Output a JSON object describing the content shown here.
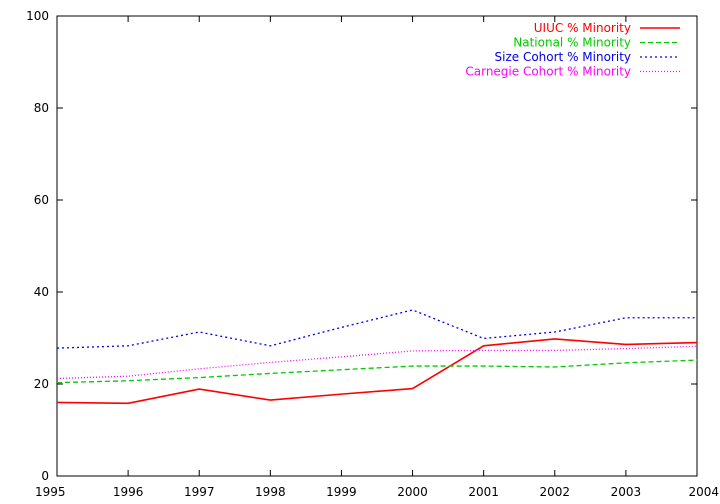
{
  "chart_data": {
    "type": "line",
    "title": "",
    "xlabel": "",
    "ylabel": "",
    "x": [
      1995,
      1996,
      1997,
      1998,
      1999,
      2000,
      2001,
      2002,
      2003,
      2004
    ],
    "xlim": [
      1995,
      2004
    ],
    "ylim": [
      0,
      100
    ],
    "xticks": [
      "1995",
      "1996",
      "1997",
      "1998",
      "1999",
      "2000",
      "2001",
      "2002",
      "2003",
      "2004"
    ],
    "yticks": [
      "0",
      "20",
      "40",
      "60",
      "80",
      "100"
    ],
    "grid": false,
    "legend_position": "top-right",
    "series": [
      {
        "name": "UIUC % Minority",
        "color": "#ff0000",
        "dash": "solid",
        "values": [
          16.0,
          15.8,
          18.9,
          16.5,
          17.8,
          19.0,
          28.3,
          29.8,
          28.6,
          29.0
        ]
      },
      {
        "name": "National % Minority",
        "color": "#00cc00",
        "dash": "dashed",
        "values": [
          20.3,
          20.7,
          21.4,
          22.3,
          23.1,
          23.9,
          23.9,
          23.7,
          24.6,
          25.2
        ]
      },
      {
        "name": "Size Cohort % Minority",
        "color": "#0000ee",
        "dash": "dotted",
        "values": [
          27.8,
          28.3,
          31.3,
          28.3,
          32.3,
          36.1,
          29.9,
          31.3,
          34.4,
          34.4
        ]
      },
      {
        "name": "Carnegie Cohort % Minority",
        "color": "#ff00ff",
        "dash": "fine-dotted",
        "values": [
          21.2,
          21.7,
          23.3,
          24.7,
          25.9,
          27.2,
          27.3,
          27.3,
          27.7,
          28.2
        ]
      }
    ]
  }
}
